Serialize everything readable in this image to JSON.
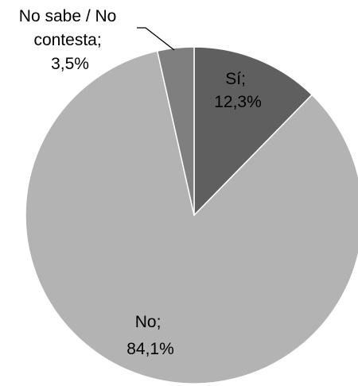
{
  "chart_data": {
    "type": "pie",
    "start_angle_deg": 0,
    "direction": "clockwise",
    "slices": [
      {
        "label": "Sí",
        "value": 12.3,
        "text": "12,3%",
        "color": "#5f5f5f"
      },
      {
        "label": "No",
        "value": 84.1,
        "text": "84,1%",
        "color": "#b3b3b3"
      },
      {
        "label": "No sabe / No contesta",
        "value": 3.5,
        "text": "3,5%",
        "color": "#7f7f7f"
      }
    ],
    "data_labels": [
      {
        "lines": [
          "Sí;",
          "12,3%"
        ]
      },
      {
        "lines": [
          "No;",
          "84,1%"
        ]
      },
      {
        "lines": [
          "No sabe / No",
          "contesta;",
          "3,5%"
        ]
      }
    ]
  }
}
